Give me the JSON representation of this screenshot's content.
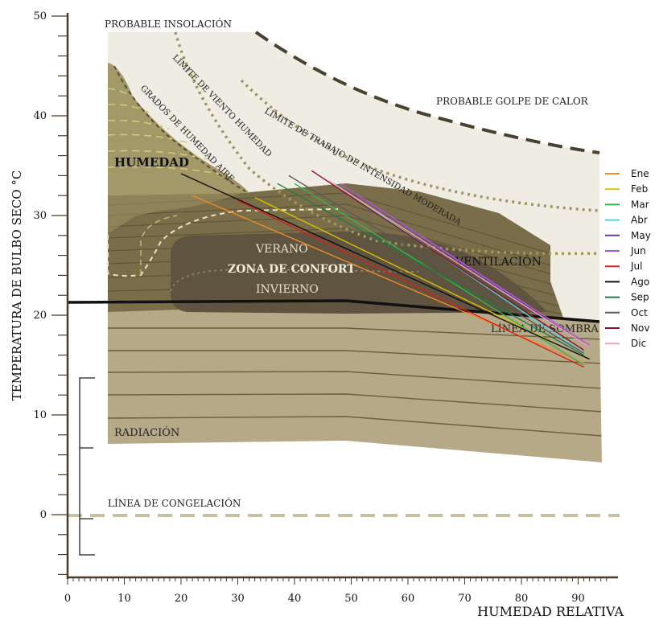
{
  "chart_data": {
    "type": "line",
    "xlabel": "HUMEDAD RELATIVA",
    "ylabel": "TEMPERATURA DE BULBO SECO °C",
    "xlim": [
      0,
      95
    ],
    "ylim": [
      -6,
      50
    ],
    "x_ticks": [
      "0",
      "10",
      "20",
      "30",
      "40",
      "50",
      "60",
      "70",
      "80",
      "90"
    ],
    "y_ticks": [
      "0",
      "10",
      "20",
      "30",
      "40",
      "50"
    ],
    "zones": {
      "insolacion": "PROBABLE INSOLACIÓN",
      "golpe_calor": "PROBABLE GOLPE DE CALOR",
      "viento_humedad": "LÍMITE DE VIENTO HUMEDAD",
      "grados_humedad": "GRADOS DE HUMEDAD AIRE",
      "trabajo": "LÍMITE DE TRABAJO DE INTENSIDAD MODERADA",
      "humedad": "HUMEDAD",
      "verano": "VERANO",
      "confort": "ZONA DE CONFORT",
      "invierno": "INVIERNO",
      "ventilacion": "VENTILACIÓN",
      "sombra": "LÍNEA DE SOMBRA",
      "radiacion": "RADIACIÓN",
      "congelacion": "LÍNEA DE CONGELACIÓN"
    },
    "series": [
      {
        "name": "Ene",
        "color": "#f08c28",
        "x": [
          22,
          91
        ],
        "y": [
          32.0,
          15.2
        ]
      },
      {
        "name": "Feb",
        "color": "#d8c400",
        "x": [
          33,
          91
        ],
        "y": [
          31.8,
          15.8
        ]
      },
      {
        "name": "Mar",
        "color": "#3cb24a",
        "x": [
          40,
          91
        ],
        "y": [
          33.2,
          15.0
        ]
      },
      {
        "name": "Abr",
        "color": "#4fd8d8",
        "x": [
          47,
          91
        ],
        "y": [
          33.2,
          16.2
        ]
      },
      {
        "name": "May",
        "color": "#6a3c9a",
        "x": [
          49,
          92
        ],
        "y": [
          32.8,
          16.8
        ]
      },
      {
        "name": "Jun",
        "color": "#b25ad2",
        "x": [
          48,
          92
        ],
        "y": [
          33.2,
          17.0
        ]
      },
      {
        "name": "Jul",
        "color": "#d82020",
        "x": [
          30,
          91
        ],
        "y": [
          31.5,
          14.8
        ]
      },
      {
        "name": "Ago",
        "color": "#111111",
        "x": [
          20,
          92
        ],
        "y": [
          34.2,
          15.6
        ]
      },
      {
        "name": "Sep",
        "color": "#1e7a46",
        "x": [
          37,
          91
        ],
        "y": [
          33.2,
          16.0
        ]
      },
      {
        "name": "Oct",
        "color": "#5a5a5a",
        "x": [
          39,
          91
        ],
        "y": [
          34.0,
          16.2
        ]
      },
      {
        "name": "Nov",
        "color": "#8a1030",
        "x": [
          43,
          91
        ],
        "y": [
          34.5,
          16.5
        ]
      },
      {
        "name": "Dic",
        "color": "#f0a0c0",
        "x": [
          46,
          92
        ],
        "y": [
          33.5,
          16.8
        ]
      }
    ]
  }
}
